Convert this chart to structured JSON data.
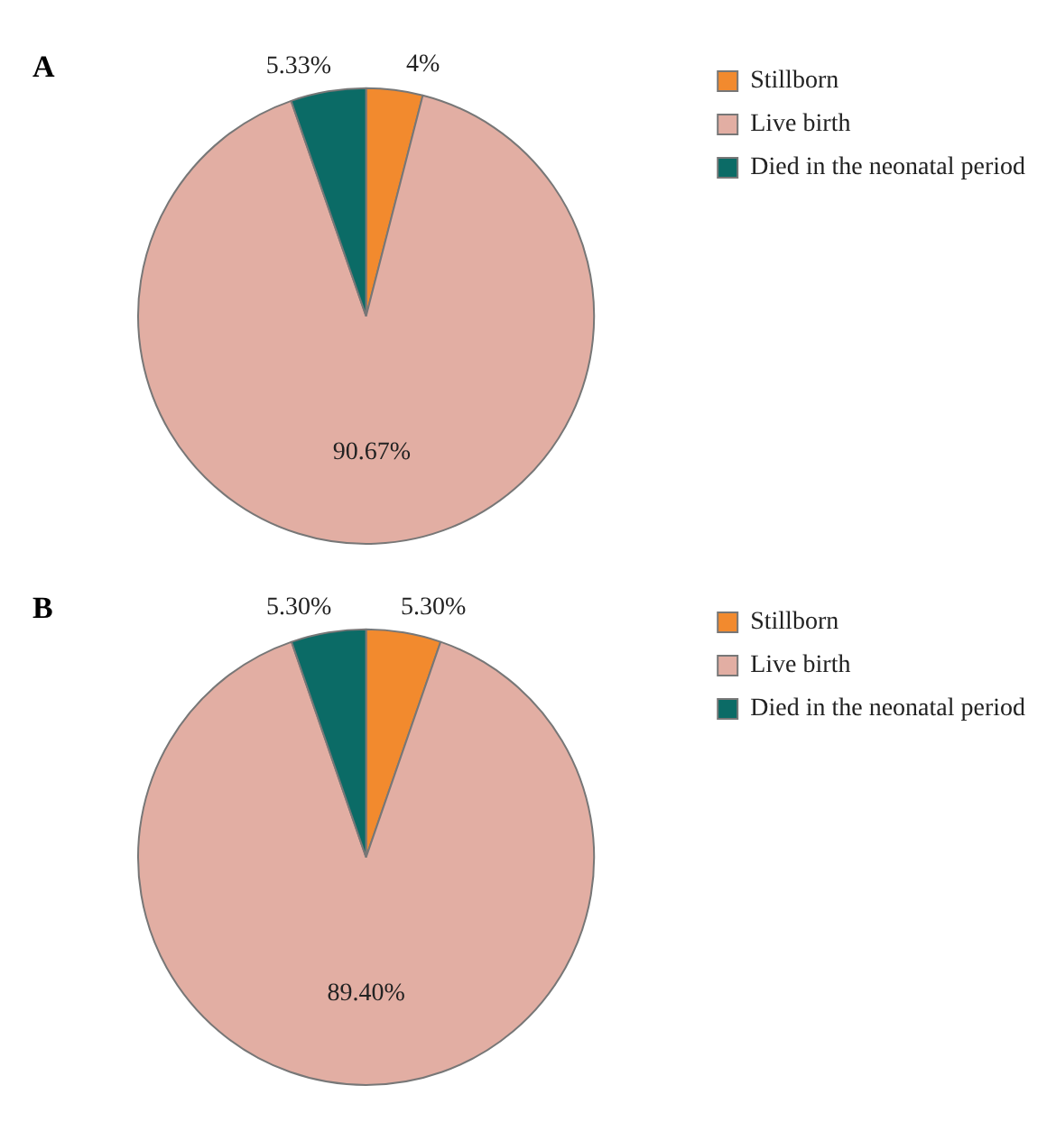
{
  "chart_data": [
    {
      "type": "pie",
      "title": "A",
      "categories": [
        "Stillborn",
        "Live birth",
        "Died in the neonatal period"
      ],
      "values": [
        4,
        90.67,
        5.33
      ],
      "value_labels": [
        "4%",
        "90.67%",
        "5.33%"
      ],
      "colors": [
        "#f28a2e",
        "#e2aea3",
        "#0b6b66"
      ],
      "legend": "top right"
    },
    {
      "type": "pie",
      "title": "B",
      "categories": [
        "Stillborn",
        "Live birth",
        "Died in the neonatal period"
      ],
      "values": [
        5.3,
        89.4,
        5.3
      ],
      "value_labels": [
        "5.30%",
        "89.40%",
        "5.30%"
      ],
      "colors": [
        "#f28a2e",
        "#e2aea3",
        "#0b6b66"
      ],
      "legend": "top right"
    }
  ]
}
